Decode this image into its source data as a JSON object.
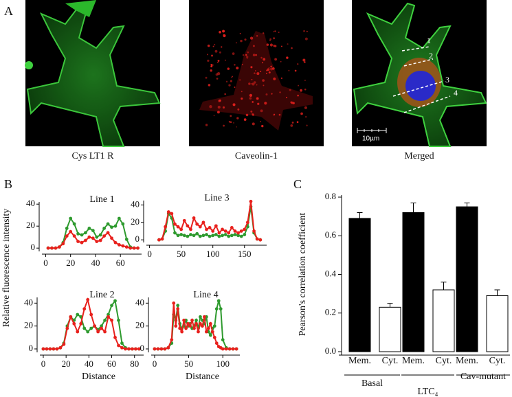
{
  "panel_labels": [
    "A",
    "B",
    "C"
  ],
  "images": {
    "captions": [
      "Cys LT1 R",
      "Caveolin-1",
      "Merged"
    ],
    "line_labels": [
      "1",
      "2",
      "3",
      "4"
    ],
    "scale_bar": "10µm"
  },
  "panel_b": {
    "ylabel": "Relative fluorescence intensity"
  },
  "chart_data": [
    {
      "type": "line",
      "title": "Line 1",
      "x": [
        2,
        5,
        8,
        11,
        14,
        17,
        20,
        23,
        26,
        29,
        32,
        35,
        38,
        41,
        44,
        47,
        50,
        53,
        56,
        59,
        62,
        65,
        68,
        71,
        74
      ],
      "series": [
        {
          "color": "#2e9a2e",
          "values": [
            0,
            0,
            0,
            1,
            5,
            18,
            27,
            22,
            13,
            12,
            14,
            18,
            16,
            10,
            12,
            18,
            22,
            19,
            20,
            27,
            22,
            8,
            1,
            0,
            0
          ]
        },
        {
          "color": "#e8201c",
          "values": [
            0,
            0,
            0,
            1,
            4,
            11,
            15,
            11,
            6,
            5,
            7,
            10,
            9,
            6,
            7,
            11,
            14,
            9,
            5,
            3,
            2,
            1,
            0,
            0,
            0
          ]
        }
      ],
      "xlim": [
        -3,
        77
      ],
      "ylim": [
        -3,
        42
      ],
      "xticks": [
        0,
        20,
        40,
        60
      ],
      "yticks": [
        0,
        20,
        40
      ]
    },
    {
      "type": "line",
      "title": "Line 3",
      "x": [
        15,
        20,
        25,
        30,
        35,
        40,
        45,
        50,
        55,
        60,
        65,
        70,
        75,
        80,
        85,
        90,
        95,
        100,
        105,
        110,
        115,
        120,
        125,
        130,
        135,
        140,
        145,
        150,
        155,
        160,
        165,
        170,
        175
      ],
      "series": [
        {
          "color": "#2e9a2e",
          "values": [
            0,
            1,
            10,
            30,
            25,
            8,
            5,
            6,
            5,
            4,
            6,
            5,
            7,
            4,
            5,
            6,
            4,
            5,
            6,
            4,
            5,
            6,
            4,
            5,
            6,
            5,
            4,
            6,
            15,
            38,
            8,
            1,
            0
          ]
        },
        {
          "color": "#e8201c",
          "values": [
            0,
            1,
            15,
            32,
            30,
            18,
            15,
            12,
            22,
            16,
            12,
            25,
            18,
            15,
            20,
            12,
            14,
            10,
            16,
            8,
            12,
            10,
            8,
            14,
            10,
            8,
            10,
            12,
            20,
            44,
            10,
            1,
            0
          ]
        }
      ],
      "xlim": [
        -5,
        185
      ],
      "ylim": [
        -3,
        45
      ],
      "xticks": [
        0,
        50,
        100,
        150
      ],
      "yticks": [
        0,
        20,
        40
      ]
    },
    {
      "type": "line",
      "title": "Line 2",
      "xlabel": "Distance",
      "x": [
        0,
        3,
        6,
        9,
        12,
        15,
        18,
        21,
        24,
        27,
        30,
        33,
        36,
        39,
        42,
        45,
        48,
        51,
        54,
        57,
        60,
        63,
        66,
        69,
        72,
        75,
        78,
        81,
        84
      ],
      "series": [
        {
          "color": "#2e9a2e",
          "values": [
            0,
            0,
            0,
            0,
            0,
            1,
            5,
            20,
            28,
            25,
            30,
            28,
            18,
            15,
            18,
            20,
            17,
            20,
            25,
            30,
            38,
            42,
            25,
            5,
            1,
            0,
            0,
            0,
            0
          ]
        },
        {
          "color": "#e8201c",
          "values": [
            0,
            0,
            0,
            0,
            0,
            1,
            4,
            18,
            28,
            22,
            15,
            22,
            35,
            43,
            30,
            20,
            15,
            18,
            15,
            28,
            25,
            10,
            3,
            1,
            0,
            0,
            0,
            0,
            0
          ]
        }
      ],
      "xlim": [
        -3,
        88
      ],
      "ylim": [
        -3,
        45
      ],
      "xticks": [
        0,
        20,
        40,
        60,
        80
      ],
      "yticks": [
        0,
        20,
        40
      ]
    },
    {
      "type": "line",
      "title": "Line 4",
      "xlabel": "Distance",
      "x": [
        0,
        5,
        10,
        15,
        20,
        25,
        28,
        31,
        34,
        37,
        40,
        43,
        46,
        49,
        52,
        55,
        58,
        61,
        64,
        67,
        70,
        73,
        76,
        79,
        82,
        85,
        88,
        91,
        94,
        97,
        100,
        105,
        110,
        115,
        120
      ],
      "series": [
        {
          "color": "#2e9a2e",
          "values": [
            0,
            0,
            0,
            0,
            1,
            5,
            30,
            25,
            38,
            22,
            18,
            20,
            25,
            20,
            22,
            18,
            20,
            25,
            18,
            28,
            25,
            22,
            28,
            15,
            12,
            18,
            20,
            35,
            42,
            35,
            8,
            1,
            0,
            0,
            0
          ]
        },
        {
          "color": "#e8201c",
          "values": [
            0,
            0,
            0,
            0,
            1,
            8,
            40,
            20,
            35,
            18,
            15,
            25,
            18,
            22,
            20,
            25,
            18,
            22,
            15,
            22,
            20,
            28,
            15,
            18,
            22,
            15,
            10,
            5,
            2,
            1,
            0,
            0,
            0,
            0,
            0
          ]
        }
      ],
      "xlim": [
        -5,
        125
      ],
      "ylim": [
        -3,
        45
      ],
      "xticks": [
        0,
        50,
        100
      ],
      "yticks": [
        0,
        20,
        40
      ]
    },
    {
      "type": "bar",
      "ylabel": "Pearson's correlation coefficient",
      "categories": [
        "Mem.",
        "Cyt.",
        "Mem.",
        "Cyt.",
        "Mem.",
        "Cyt."
      ],
      "groups": [
        "Basal",
        "LTC₄",
        "Cav-mutant"
      ],
      "values": [
        0.69,
        0.23,
        0.72,
        0.32,
        0.75,
        0.29
      ],
      "errors": [
        0.03,
        0.02,
        0.05,
        0.04,
        0.02,
        0.03
      ],
      "colors": [
        "#000000",
        "#ffffff",
        "#000000",
        "#ffffff",
        "#000000",
        "#ffffff"
      ],
      "ylim": [
        0,
        0.8
      ],
      "yticks": [
        {
          "value": 0,
          "label": "0.0"
        },
        0.2,
        0.4,
        0.6,
        0.8
      ]
    }
  ]
}
